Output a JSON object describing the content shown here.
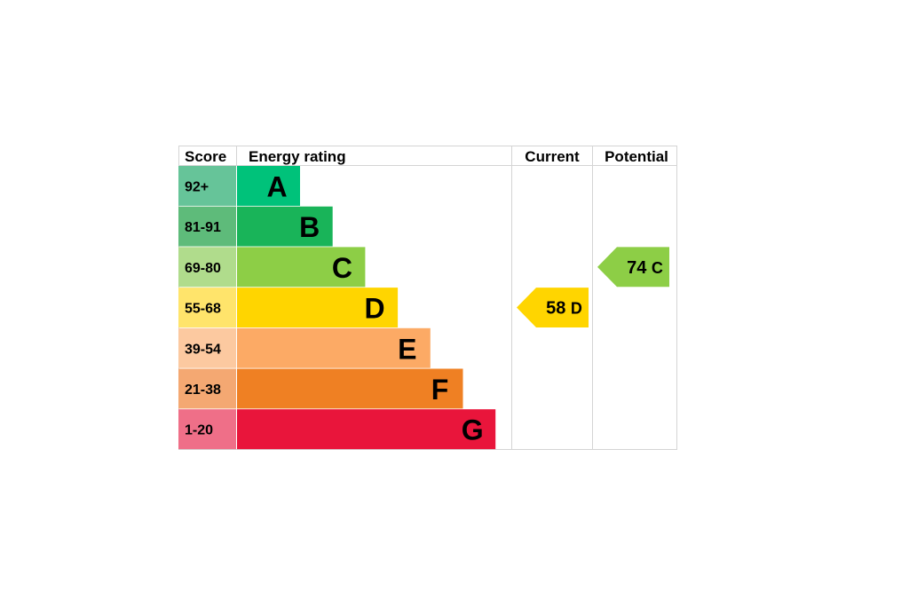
{
  "chart_data": {
    "type": "bar",
    "headers": {
      "score": "Score",
      "rating": "Energy rating",
      "current": "Current",
      "potential": "Potential"
    },
    "bands": [
      {
        "score": "92+",
        "letter": "A",
        "score_color": "#66c499",
        "bar_color": "#00c27a"
      },
      {
        "score": "81-91",
        "letter": "B",
        "score_color": "#5ebb7a",
        "bar_color": "#19b459"
      },
      {
        "score": "69-80",
        "letter": "C",
        "score_color": "#b0dc8c",
        "bar_color": "#8dce46"
      },
      {
        "score": "55-68",
        "letter": "D",
        "score_color": "#ffe46b",
        "bar_color": "#ffd500"
      },
      {
        "score": "39-54",
        "letter": "E",
        "score_color": "#fcc9a0",
        "bar_color": "#fcaa65"
      },
      {
        "score": "21-38",
        "letter": "F",
        "score_color": "#f4a872",
        "bar_color": "#ef8023"
      },
      {
        "score": "1-20",
        "letter": "G",
        "score_color": "#ef6f88",
        "bar_color": "#e9153b"
      }
    ],
    "current": {
      "value": 58,
      "letter": "D",
      "label": "58 D",
      "color": "#ffd500"
    },
    "potential": {
      "value": 74,
      "letter": "C",
      "label": "74 C",
      "color": "#8dce46"
    }
  }
}
